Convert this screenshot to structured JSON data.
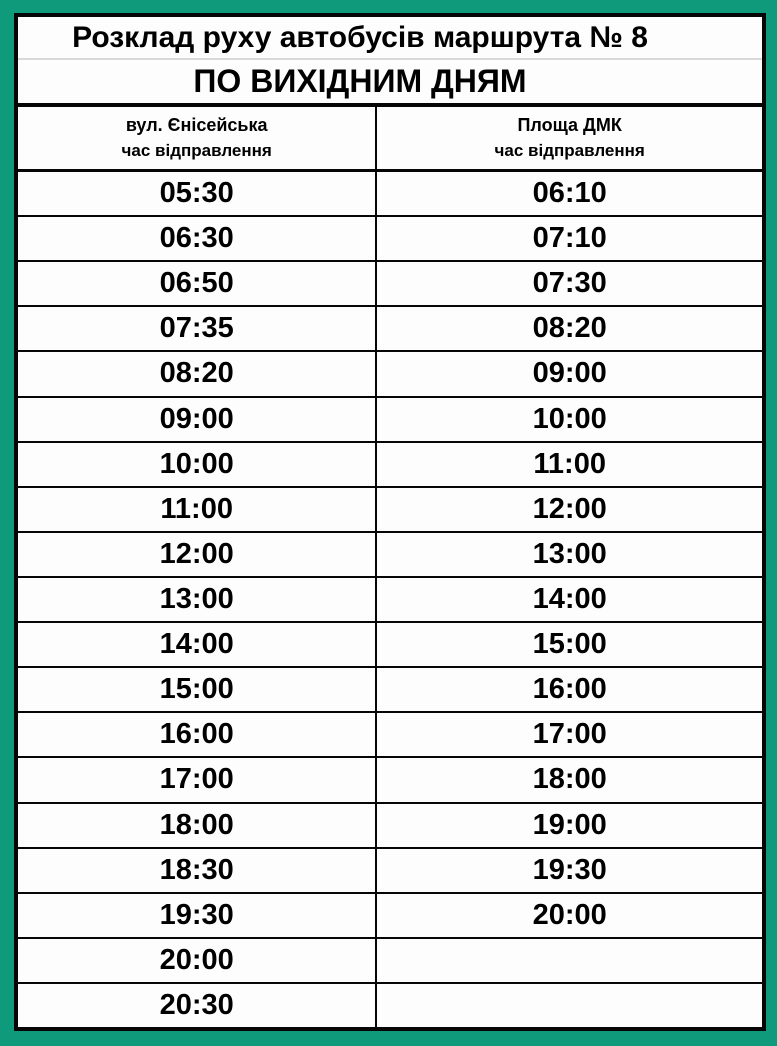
{
  "page": {
    "background_color": "#0f9b7b",
    "border_color": "#060606"
  },
  "table": {
    "title": "Розклад руху автобусів маршрута № 8",
    "subtitle": "ПО ВИХІДНИМ ДНЯМ",
    "columns": [
      {
        "stop": "вул. Єнісейська",
        "sublabel": "час відправлення"
      },
      {
        "stop": "Площа ДМК",
        "sublabel": "час відправлення"
      }
    ],
    "rows": [
      [
        "05:30",
        "06:10"
      ],
      [
        "06:30",
        "07:10"
      ],
      [
        "06:50",
        "07:30"
      ],
      [
        "07:35",
        "08:20"
      ],
      [
        "08:20",
        "09:00"
      ],
      [
        "09:00",
        "10:00"
      ],
      [
        "10:00",
        "11:00"
      ],
      [
        "11:00",
        "12:00"
      ],
      [
        "12:00",
        "13:00"
      ],
      [
        "13:00",
        "14:00"
      ],
      [
        "14:00",
        "15:00"
      ],
      [
        "15:00",
        "16:00"
      ],
      [
        "16:00",
        "17:00"
      ],
      [
        "17:00",
        "18:00"
      ],
      [
        "18:00",
        "19:00"
      ],
      [
        "18:30",
        "19:30"
      ],
      [
        "19:30",
        "20:00"
      ],
      [
        "20:00",
        ""
      ],
      [
        "20:30",
        ""
      ]
    ]
  }
}
